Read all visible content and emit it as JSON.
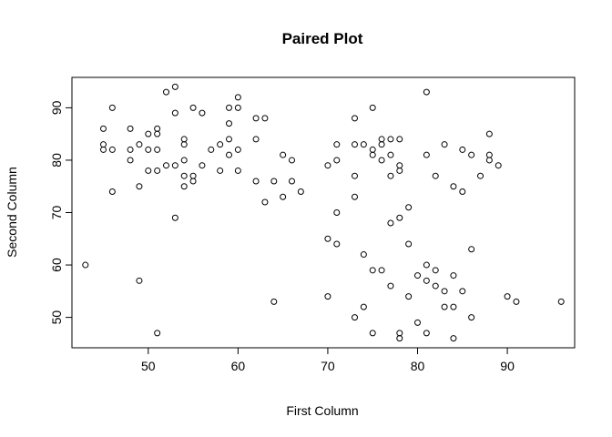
{
  "chart_data": {
    "type": "scatter",
    "title": "Paired Plot",
    "xlabel": "First Column",
    "ylabel": "Second Column",
    "xlim": [
      41.5,
      97.5
    ],
    "ylim": [
      44.2,
      95.8
    ],
    "xticks": [
      50,
      60,
      70,
      80,
      90
    ],
    "yticks": [
      50,
      60,
      70,
      80,
      90
    ],
    "grid": false,
    "points": [
      {
        "x": 43,
        "y": 60
      },
      {
        "x": 45,
        "y": 86
      },
      {
        "x": 45,
        "y": 83
      },
      {
        "x": 45,
        "y": 82
      },
      {
        "x": 46,
        "y": 90
      },
      {
        "x": 46,
        "y": 82
      },
      {
        "x": 46,
        "y": 74
      },
      {
        "x": 48,
        "y": 86
      },
      {
        "x": 48,
        "y": 82
      },
      {
        "x": 48,
        "y": 80
      },
      {
        "x": 49,
        "y": 83
      },
      {
        "x": 49,
        "y": 75
      },
      {
        "x": 49,
        "y": 57
      },
      {
        "x": 50,
        "y": 85
      },
      {
        "x": 50,
        "y": 82
      },
      {
        "x": 50,
        "y": 78
      },
      {
        "x": 51,
        "y": 86
      },
      {
        "x": 51,
        "y": 85
      },
      {
        "x": 51,
        "y": 82
      },
      {
        "x": 51,
        "y": 78
      },
      {
        "x": 51,
        "y": 47
      },
      {
        "x": 52,
        "y": 93
      },
      {
        "x": 52,
        "y": 79
      },
      {
        "x": 53,
        "y": 94
      },
      {
        "x": 53,
        "y": 89
      },
      {
        "x": 53,
        "y": 79
      },
      {
        "x": 53,
        "y": 69
      },
      {
        "x": 54,
        "y": 84
      },
      {
        "x": 54,
        "y": 83
      },
      {
        "x": 54,
        "y": 80
      },
      {
        "x": 54,
        "y": 77
      },
      {
        "x": 54,
        "y": 75
      },
      {
        "x": 55,
        "y": 90
      },
      {
        "x": 55,
        "y": 77
      },
      {
        "x": 55,
        "y": 76
      },
      {
        "x": 56,
        "y": 89
      },
      {
        "x": 56,
        "y": 79
      },
      {
        "x": 57,
        "y": 82
      },
      {
        "x": 58,
        "y": 83
      },
      {
        "x": 58,
        "y": 78
      },
      {
        "x": 59,
        "y": 90
      },
      {
        "x": 59,
        "y": 87
      },
      {
        "x": 59,
        "y": 84
      },
      {
        "x": 59,
        "y": 81
      },
      {
        "x": 60,
        "y": 92
      },
      {
        "x": 60,
        "y": 90
      },
      {
        "x": 60,
        "y": 82
      },
      {
        "x": 60,
        "y": 78
      },
      {
        "x": 62,
        "y": 88
      },
      {
        "x": 62,
        "y": 84
      },
      {
        "x": 62,
        "y": 76
      },
      {
        "x": 63,
        "y": 88
      },
      {
        "x": 63,
        "y": 72
      },
      {
        "x": 64,
        "y": 76
      },
      {
        "x": 64,
        "y": 53
      },
      {
        "x": 65,
        "y": 81
      },
      {
        "x": 65,
        "y": 73
      },
      {
        "x": 66,
        "y": 80
      },
      {
        "x": 66,
        "y": 76
      },
      {
        "x": 67,
        "y": 74
      },
      {
        "x": 70,
        "y": 79
      },
      {
        "x": 70,
        "y": 65
      },
      {
        "x": 70,
        "y": 54
      },
      {
        "x": 71,
        "y": 83
      },
      {
        "x": 71,
        "y": 80
      },
      {
        "x": 71,
        "y": 70
      },
      {
        "x": 71,
        "y": 64
      },
      {
        "x": 73,
        "y": 88
      },
      {
        "x": 73,
        "y": 83
      },
      {
        "x": 73,
        "y": 77
      },
      {
        "x": 73,
        "y": 73
      },
      {
        "x": 73,
        "y": 50
      },
      {
        "x": 74,
        "y": 83
      },
      {
        "x": 74,
        "y": 62
      },
      {
        "x": 74,
        "y": 52
      },
      {
        "x": 75,
        "y": 90
      },
      {
        "x": 75,
        "y": 82
      },
      {
        "x": 75,
        "y": 81
      },
      {
        "x": 75,
        "y": 59
      },
      {
        "x": 75,
        "y": 47
      },
      {
        "x": 76,
        "y": 84
      },
      {
        "x": 76,
        "y": 83
      },
      {
        "x": 76,
        "y": 80
      },
      {
        "x": 76,
        "y": 59
      },
      {
        "x": 77,
        "y": 84
      },
      {
        "x": 77,
        "y": 81
      },
      {
        "x": 77,
        "y": 77
      },
      {
        "x": 77,
        "y": 68
      },
      {
        "x": 77,
        "y": 56
      },
      {
        "x": 78,
        "y": 84
      },
      {
        "x": 78,
        "y": 79
      },
      {
        "x": 78,
        "y": 78
      },
      {
        "x": 78,
        "y": 69
      },
      {
        "x": 78,
        "y": 47
      },
      {
        "x": 78,
        "y": 46
      },
      {
        "x": 79,
        "y": 71
      },
      {
        "x": 79,
        "y": 64
      },
      {
        "x": 79,
        "y": 54
      },
      {
        "x": 80,
        "y": 58
      },
      {
        "x": 80,
        "y": 49
      },
      {
        "x": 81,
        "y": 93
      },
      {
        "x": 81,
        "y": 81
      },
      {
        "x": 81,
        "y": 60
      },
      {
        "x": 81,
        "y": 57
      },
      {
        "x": 81,
        "y": 47
      },
      {
        "x": 82,
        "y": 77
      },
      {
        "x": 82,
        "y": 59
      },
      {
        "x": 82,
        "y": 56
      },
      {
        "x": 83,
        "y": 83
      },
      {
        "x": 83,
        "y": 55
      },
      {
        "x": 83,
        "y": 52
      },
      {
        "x": 84,
        "y": 75
      },
      {
        "x": 84,
        "y": 58
      },
      {
        "x": 84,
        "y": 52
      },
      {
        "x": 84,
        "y": 46
      },
      {
        "x": 85,
        "y": 82
      },
      {
        "x": 85,
        "y": 74
      },
      {
        "x": 85,
        "y": 55
      },
      {
        "x": 86,
        "y": 81
      },
      {
        "x": 86,
        "y": 63
      },
      {
        "x": 86,
        "y": 50
      },
      {
        "x": 87,
        "y": 77
      },
      {
        "x": 88,
        "y": 85
      },
      {
        "x": 88,
        "y": 81
      },
      {
        "x": 88,
        "y": 80
      },
      {
        "x": 89,
        "y": 79
      },
      {
        "x": 90,
        "y": 54
      },
      {
        "x": 91,
        "y": 53
      },
      {
        "x": 96,
        "y": 53
      }
    ]
  }
}
